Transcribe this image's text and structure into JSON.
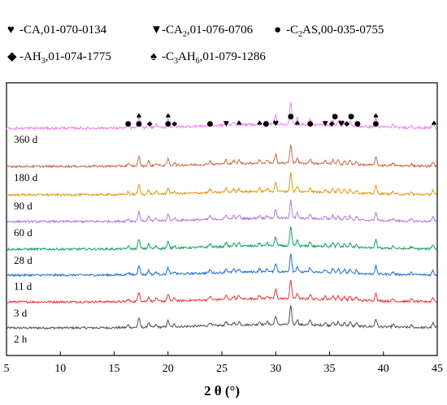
{
  "legend": {
    "row1": [
      {
        "symbol": "♥",
        "symbol_name": "heart",
        "text": "-CA,01-070-0134"
      },
      {
        "symbol": "▼",
        "symbol_name": "down-triangle",
        "text": "-CA",
        "sub": "2",
        "text2": ",01-076-0706"
      },
      {
        "symbol": "●",
        "symbol_name": "circle",
        "text": "-C",
        "sub": "2",
        "text2": "AS,00-035-0755"
      }
    ],
    "row2": [
      {
        "symbol": "◆",
        "symbol_name": "diamond",
        "text": "-AH",
        "sub": "3",
        "text2": ",01-074-1775"
      },
      {
        "symbol": "♠",
        "symbol_name": "spade",
        "text": "-C",
        "sub": "3",
        "text2": "AH",
        "sub2": "6",
        "text3": ",01-079-1286"
      }
    ]
  },
  "chart_data": {
    "type": "line",
    "title": "",
    "xlabel": "2 θ (°)",
    "ylabel": "",
    "xlim": [
      5,
      45
    ],
    "xticks": [
      5,
      10,
      15,
      20,
      25,
      30,
      35,
      40,
      45
    ],
    "grid": false,
    "series": [
      {
        "name": "2 h",
        "color": "#505050"
      },
      {
        "name": "3 d",
        "color": "#e8383a"
      },
      {
        "name": "11 d",
        "color": "#1f6fd6"
      },
      {
        "name": "28 d",
        "color": "#14a35a"
      },
      {
        "name": "60 d",
        "color": "#b07ad8"
      },
      {
        "name": "90 d",
        "color": "#e09a10"
      },
      {
        "name": "180 d",
        "color": "#c96a48"
      },
      {
        "name": "360 d",
        "color": "#f27ff0"
      }
    ],
    "peaks": [
      {
        "x": 16.3,
        "h": 0.25
      },
      {
        "x": 17.3,
        "h": 1.0
      },
      {
        "x": 18.2,
        "h": 0.45
      },
      {
        "x": 18.9,
        "h": 0.25
      },
      {
        "x": 20.0,
        "h": 0.65
      },
      {
        "x": 20.6,
        "h": 0.25
      },
      {
        "x": 23.9,
        "h": 0.35
      },
      {
        "x": 25.4,
        "h": 0.4
      },
      {
        "x": 26.1,
        "h": 0.3
      },
      {
        "x": 26.6,
        "h": 0.35
      },
      {
        "x": 28.5,
        "h": 0.3
      },
      {
        "x": 29.2,
        "h": 0.3
      },
      {
        "x": 30.0,
        "h": 0.9
      },
      {
        "x": 31.4,
        "h": 1.9
      },
      {
        "x": 32.0,
        "h": 0.55
      },
      {
        "x": 33.2,
        "h": 0.45
      },
      {
        "x": 34.6,
        "h": 0.3
      },
      {
        "x": 35.3,
        "h": 0.4
      },
      {
        "x": 35.8,
        "h": 0.4
      },
      {
        "x": 36.4,
        "h": 0.35
      },
      {
        "x": 36.9,
        "h": 0.4
      },
      {
        "x": 37.5,
        "h": 0.35
      },
      {
        "x": 39.3,
        "h": 0.8
      },
      {
        "x": 40.9,
        "h": 0.25
      },
      {
        "x": 42.6,
        "h": 0.2
      },
      {
        "x": 44.6,
        "h": 0.45
      }
    ],
    "markers": [
      {
        "x": 16.3,
        "row": 0,
        "symbol": "●"
      },
      {
        "x": 17.3,
        "row": 0,
        "symbol": "●"
      },
      {
        "x": 17.3,
        "row": 1,
        "symbol": "♠"
      },
      {
        "x": 18.3,
        "row": 0,
        "symbol": "◆"
      },
      {
        "x": 20.0,
        "row": 0,
        "symbol": "●"
      },
      {
        "x": 20.0,
        "row": 1,
        "symbol": "♠"
      },
      {
        "x": 20.6,
        "row": 0,
        "symbol": "◆"
      },
      {
        "x": 23.9,
        "row": 0,
        "symbol": "●"
      },
      {
        "x": 25.4,
        "row": 0,
        "symbol": "▼"
      },
      {
        "x": 26.6,
        "row": 0,
        "symbol": "♠"
      },
      {
        "x": 28.5,
        "row": 0,
        "symbol": "♠"
      },
      {
        "x": 29.1,
        "row": 0,
        "symbol": "●"
      },
      {
        "x": 30.0,
        "row": 0,
        "symbol": "♥"
      },
      {
        "x": 31.4,
        "row": 1,
        "symbol": "●"
      },
      {
        "x": 32.0,
        "row": 0,
        "symbol": "♠"
      },
      {
        "x": 33.2,
        "row": 0,
        "symbol": "●"
      },
      {
        "x": 34.6,
        "row": 0,
        "symbol": "▼"
      },
      {
        "x": 35.2,
        "row": 0,
        "symbol": "◆"
      },
      {
        "x": 35.5,
        "row": 1,
        "symbol": "●"
      },
      {
        "x": 36.1,
        "row": 0,
        "symbol": "♥"
      },
      {
        "x": 36.6,
        "row": 0,
        "symbol": "◆"
      },
      {
        "x": 37.0,
        "row": 1,
        "symbol": "●"
      },
      {
        "x": 37.6,
        "row": 0,
        "symbol": "●"
      },
      {
        "x": 39.3,
        "row": 0,
        "symbol": "●"
      },
      {
        "x": 39.3,
        "row": 1,
        "symbol": "♠"
      },
      {
        "x": 44.7,
        "row": 0,
        "symbol": "♠"
      }
    ]
  }
}
